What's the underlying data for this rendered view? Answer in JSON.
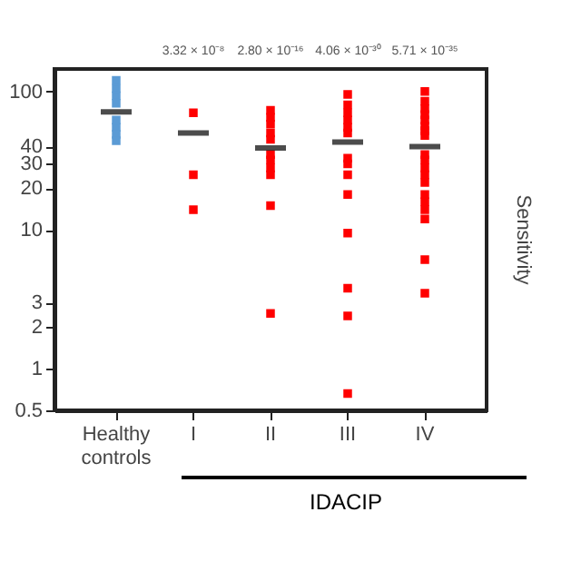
{
  "chart_data": {
    "type": "scatter",
    "categories": [
      "Healthy controls",
      "I",
      "II",
      "III",
      "IV"
    ],
    "xlabel": "IDACIP",
    "ylabel": "Sensitivity",
    "log": "y",
    "ylim": [
      0.5,
      145
    ],
    "yticks": [
      0.5,
      1,
      2,
      3,
      10,
      20,
      30,
      40,
      100
    ],
    "marker": "square",
    "grid": false,
    "annotations": [
      "3.32 × 10⁻⁸",
      "2.80 × 10⁻¹⁶",
      "4.06 × 10⁻³⁰",
      "5.71 × 10⁻³⁵"
    ],
    "series": [
      {
        "color": "#5b9bd5",
        "x": [
          "Healthy controls",
          "Healthy controls",
          "Healthy controls",
          "Healthy controls",
          "Healthy controls",
          "Healthy controls",
          "Healthy controls",
          "Healthy controls"
        ],
        "values": [
          120,
          105,
          93,
          82,
          62,
          55,
          49,
          44
        ]
      },
      {
        "color": "#ff0000",
        "x": [
          "I",
          "I",
          "I",
          "II",
          "II",
          "II",
          "II",
          "II",
          "II",
          "II",
          "II",
          "II",
          "II",
          "II",
          "III",
          "III",
          "III",
          "III",
          "III",
          "III",
          "III",
          "III",
          "III",
          "III",
          "III",
          "III",
          "III",
          "III",
          "IV",
          "IV",
          "IV",
          "IV",
          "IV",
          "IV",
          "IV",
          "IV",
          "IV",
          "IV",
          "IV",
          "IV",
          "IV",
          "IV",
          "IV",
          "IV",
          "IV",
          "IV",
          "IV"
        ],
        "values": [
          70,
          25,
          14,
          73,
          65,
          58,
          50,
          45,
          35,
          32,
          28,
          25,
          15,
          2.5,
          95,
          80,
          70,
          62,
          55,
          50,
          33,
          30,
          25,
          18,
          9.5,
          3.8,
          2.4,
          0.66,
          100,
          85,
          75,
          68,
          62,
          56,
          52,
          48,
          35,
          32,
          28,
          25,
          22,
          18,
          16,
          14,
          12,
          6.1,
          3.5
        ]
      },
      {
        "type": "box",
        "color": "#000000",
        "boxes": [
          {
            "low": 71,
            "q1": 71,
            "median": 71,
            "q3": 71,
            "high": 71
          },
          {
            "low": 50,
            "q1": 50,
            "median": 50,
            "q3": 50,
            "high": 50
          },
          {
            "low": 39,
            "q1": 39,
            "median": 39,
            "q3": 39,
            "high": 39
          },
          {
            "low": 43,
            "q1": 43,
            "median": 43,
            "q3": 43,
            "high": 43
          },
          {
            "low": 40,
            "q1": 40,
            "median": 40,
            "q3": 40,
            "high": 40
          }
        ]
      }
    ]
  }
}
